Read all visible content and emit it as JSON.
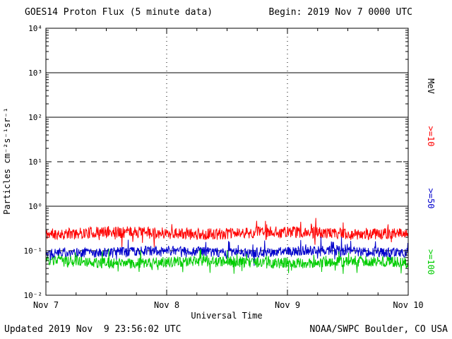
{
  "title": "GOES14 Proton Flux (5 minute data)",
  "begin_label": "Begin: 2019 Nov 7 0000 UTC",
  "footer": {
    "updated": "Updated 2019 Nov  9 23:56:02 UTC",
    "source": "NOAA/SWPC Boulder, CO USA"
  },
  "chart_data": {
    "type": "line",
    "title": "GOES14 Proton Flux (5 minute data)",
    "x_axis": {
      "label": "Universal Time",
      "ticks": [
        "Nov 7",
        "Nov 8",
        "Nov 9",
        "Nov 10"
      ],
      "tick_days": [
        0,
        1,
        2,
        3
      ],
      "range_days": 3
    },
    "y_axis": {
      "label": "Particles cm⁻²s⁻¹sr⁻¹",
      "scale": "log",
      "ylim": [
        0.01,
        10000
      ],
      "ticks": [
        "10⁴",
        "10³",
        "10²",
        "10¹",
        "10⁰",
        "10⁻¹",
        "10⁻²"
      ],
      "tick_values": [
        10000,
        1000,
        100,
        10,
        1,
        0.1,
        0.01
      ]
    },
    "right_axis_labels": [
      {
        "text": "MeV",
        "color": "#000000"
      },
      {
        "text": ">=10",
        "color": "#ff0000"
      },
      {
        "text": ">=50",
        "color": "#0000cc"
      },
      {
        "text": ">=100",
        "color": "#00cc00"
      }
    ],
    "gridlines": {
      "horizontal_solid": [
        1000,
        100,
        1
      ],
      "horizontal_dashed": [
        10,
        0.1
      ],
      "vertical_dashed_days": [
        1,
        2
      ]
    },
    "series": [
      {
        "name": ">=10 MeV",
        "color": "#ff0000",
        "approx_level": 0.25,
        "approx_range": [
          0.13,
          0.5
        ],
        "noise_log": 0.13,
        "seed": 11
      },
      {
        "name": ">=50 MeV",
        "color": "#0000cc",
        "approx_level": 0.095,
        "approx_range": [
          0.05,
          0.2
        ],
        "noise_log": 0.11,
        "seed": 22
      },
      {
        "name": ">=100 MeV",
        "color": "#00cc00",
        "approx_level": 0.055,
        "approx_range": [
          0.03,
          0.1
        ],
        "noise_log": 0.12,
        "seed": 33
      }
    ],
    "points_per_series": 864,
    "legend_position": "right-rotated",
    "grid": "horizontal-decade-lines"
  }
}
